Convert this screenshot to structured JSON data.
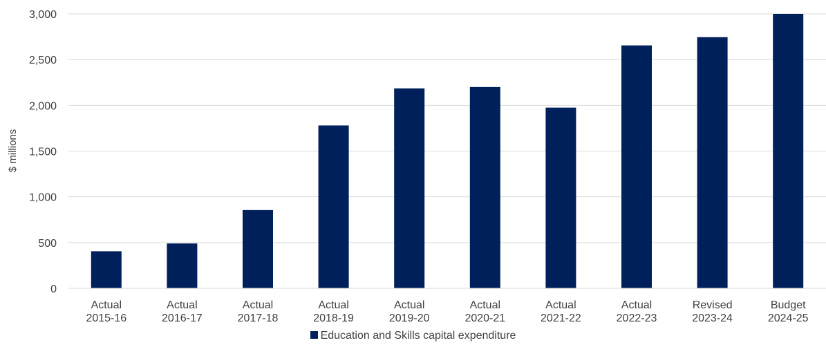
{
  "chart_data": {
    "type": "bar",
    "categories": [
      [
        "Actual",
        "2015-16"
      ],
      [
        "Actual",
        "2016-17"
      ],
      [
        "Actual",
        "2017-18"
      ],
      [
        "Actual",
        "2018-19"
      ],
      [
        "Actual",
        "2019-20"
      ],
      [
        "Actual",
        "2020-21"
      ],
      [
        "Actual",
        "2021-22"
      ],
      [
        "Actual",
        "2022-23"
      ],
      [
        "Revised",
        "2023-24"
      ],
      [
        "Budget",
        "2024-25"
      ]
    ],
    "series": [
      {
        "name": "Education and Skills capital expenditure",
        "values": [
          405,
          490,
          855,
          1780,
          2185,
          2200,
          1975,
          2655,
          2745,
          3000
        ]
      }
    ],
    "ylabel": "$ millions",
    "yticks": [
      "0",
      "500",
      "1,000",
      "1,500",
      "2,000",
      "2,500",
      "3,000"
    ],
    "ylim": [
      0,
      3000
    ],
    "grid": true,
    "legend_position": "bottom",
    "colors": {
      "bar": "#00205b",
      "grid": "#d9d9d9",
      "text": "#404040"
    }
  }
}
